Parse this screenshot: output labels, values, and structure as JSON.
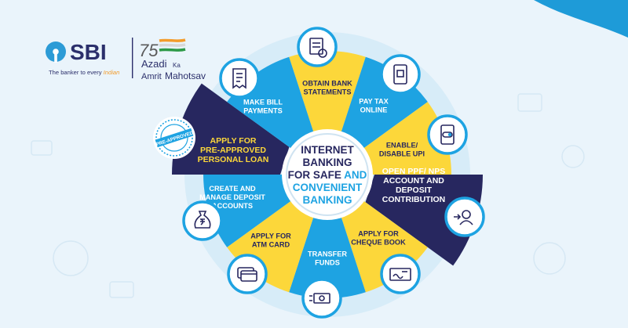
{
  "brand": {
    "name": "SBI",
    "tagline": "The banker to every Indian",
    "tagline_prefix": "The banker to every",
    "tagline_emph": "Indian",
    "campaign_number": "75",
    "campaign_line1": "Azadi",
    "campaign_ka": "Ka",
    "campaign_line2": "Amrit",
    "campaign_line3": "Mahotsav"
  },
  "center": {
    "line1": "INTERNET",
    "line2": "BANKING",
    "line3_a": "FOR SAFE",
    "line3_b": "AND",
    "line4": "CONVENIENT",
    "line5": "BANKING"
  },
  "services": [
    {
      "line1": "OBTAIN BANK",
      "line2": "STATEMENTS",
      "icon": "bank-statement-icon"
    },
    {
      "line1": "PAY TAX",
      "line2": "ONLINE",
      "icon": "mobile-pay-icon"
    },
    {
      "line1": "ENABLE/",
      "line2": "DISABLE UPI",
      "icon": "toggle-phone-icon"
    },
    {
      "line1": "OPEN PPF/ NPS",
      "line2": "ACCOUNT AND",
      "line3": "DEPOSIT",
      "line4": "CONTRIBUTION",
      "icon": "account-person-icon"
    },
    {
      "line1": "APPLY FOR",
      "line2": "CHEQUE BOOK",
      "icon": "cheque-book-icon"
    },
    {
      "line1": "TRANSFER",
      "line2": "FUNDS",
      "icon": "money-transfer-icon"
    },
    {
      "line1": "APPLY FOR",
      "line2": "ATM CARD",
      "icon": "atm-card-icon"
    },
    {
      "line1": "CREATE AND",
      "line2": "MANAGE DEPOSIT",
      "line3": "ACCOUNTS",
      "icon": "money-bag-icon"
    },
    {
      "line1": "APPLY FOR",
      "line2": "PRE-APPROVED",
      "line3": "PERSONAL LOAN",
      "icon": "pre-approved-stamp-icon",
      "stamp_text": "PRE-APPROVED"
    },
    {
      "line1": "MAKE BILL",
      "line2": "PAYMENTS",
      "icon": "bill-icon"
    }
  ],
  "colors": {
    "navy": "#27275f",
    "yellow": "#fcd73a",
    "sky": "#1ea3e2",
    "sbi_blue": "#2c9bd6",
    "text_dark": "#2b2f6b",
    "saffron": "#f39c2b",
    "green": "#2d9a47"
  }
}
